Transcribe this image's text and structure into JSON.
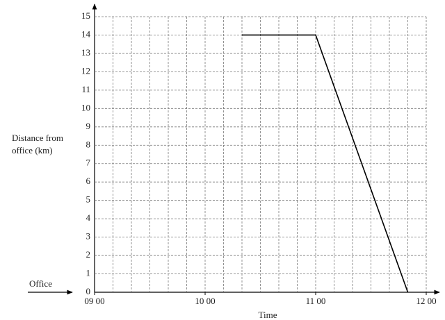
{
  "chart_data": {
    "type": "line",
    "xlabel": "Time",
    "ylabel": [
      "Distance from",
      "office (km)"
    ],
    "annotation": "Office",
    "x": [
      620,
      660,
      710
    ],
    "series": [
      {
        "color": "#000000",
        "values": [
          14,
          14,
          0
        ]
      }
    ],
    "xlim": [
      540,
      720
    ],
    "xticks": [
      {
        "value": 540,
        "label": "09 00"
      },
      {
        "value": 600,
        "label": "10 00"
      },
      {
        "value": 660,
        "label": "11 00"
      },
      {
        "value": 720,
        "label": "12 00"
      }
    ],
    "xgrid": [
      550,
      560,
      570,
      580,
      590,
      600,
      610,
      620,
      630,
      640,
      650,
      660,
      670,
      680,
      690,
      700,
      710,
      720
    ],
    "ylim": [
      0,
      15
    ],
    "yticks": [
      0,
      1,
      2,
      3,
      4,
      5,
      6,
      7,
      8,
      9,
      10,
      11,
      12,
      13,
      14,
      15
    ],
    "grid": true
  }
}
